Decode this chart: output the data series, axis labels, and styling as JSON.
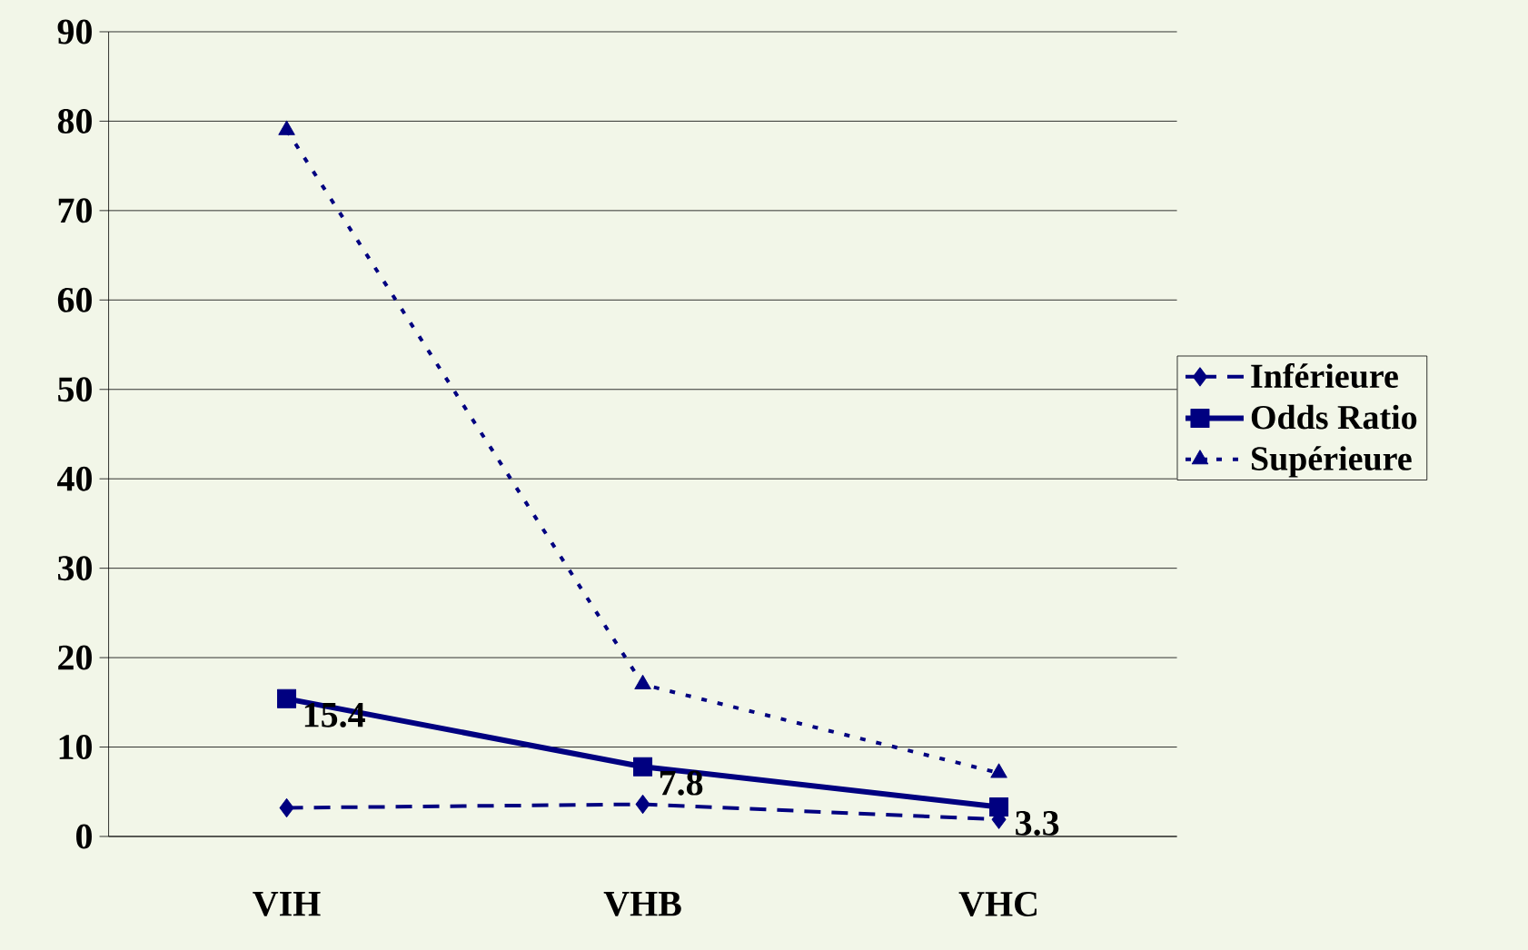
{
  "chart_data": {
    "type": "line",
    "categories": [
      "VIH",
      "VHB",
      "VHC"
    ],
    "series": [
      {
        "name": "Inférieure",
        "color": "#000080",
        "values": [
          3.2,
          3.6,
          1.9
        ],
        "marker": "diamond",
        "line_style": "dashed"
      },
      {
        "name": "Odds Ratio",
        "color": "#000080",
        "values": [
          15.4,
          7.8,
          3.3
        ],
        "marker": "square",
        "line_style": "solid",
        "value_labels": [
          "15.4",
          "7.8",
          "3.3"
        ]
      },
      {
        "name": "Supérieure",
        "color": "#000080",
        "values": [
          79,
          17,
          7.1
        ],
        "marker": "triangle",
        "line_style": "dotted"
      }
    ],
    "ylim": [
      0,
      90
    ],
    "yticks": [
      0,
      10,
      20,
      30,
      40,
      50,
      60,
      70,
      80,
      90
    ],
    "grid": "y",
    "legend": "right"
  }
}
